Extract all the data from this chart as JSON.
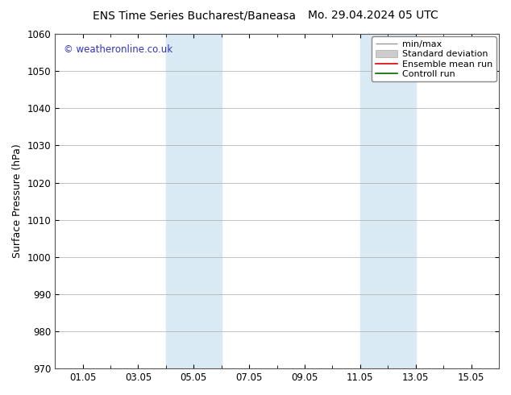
{
  "title_left": "ENS Time Series Bucharest/Baneasa",
  "title_right": "Mo. 29.04.2024 05 UTC",
  "ylabel": "Surface Pressure (hPa)",
  "ylim": [
    970,
    1060
  ],
  "yticks": [
    970,
    980,
    990,
    1000,
    1010,
    1020,
    1030,
    1040,
    1050,
    1060
  ],
  "xtick_labels": [
    "01.05",
    "03.05",
    "05.05",
    "07.05",
    "09.05",
    "11.05",
    "13.05",
    "15.05"
  ],
  "xtick_positions": [
    3,
    5,
    7,
    9,
    11,
    13,
    15,
    17
  ],
  "xlim": [
    2,
    18
  ],
  "shade_bands": [
    {
      "x_start": 6.0,
      "x_end": 8.0
    },
    {
      "x_start": 13.0,
      "x_end": 15.0
    }
  ],
  "shade_color": "#daeaf5",
  "watermark": "© weatheronline.co.uk",
  "watermark_color": "#3333bb",
  "bg_color": "#ffffff",
  "plot_bg_color": "#ffffff",
  "grid_color": "#aaaaaa",
  "title_fontsize": 10,
  "tick_fontsize": 8.5,
  "ylabel_fontsize": 9,
  "legend_fontsize": 8
}
